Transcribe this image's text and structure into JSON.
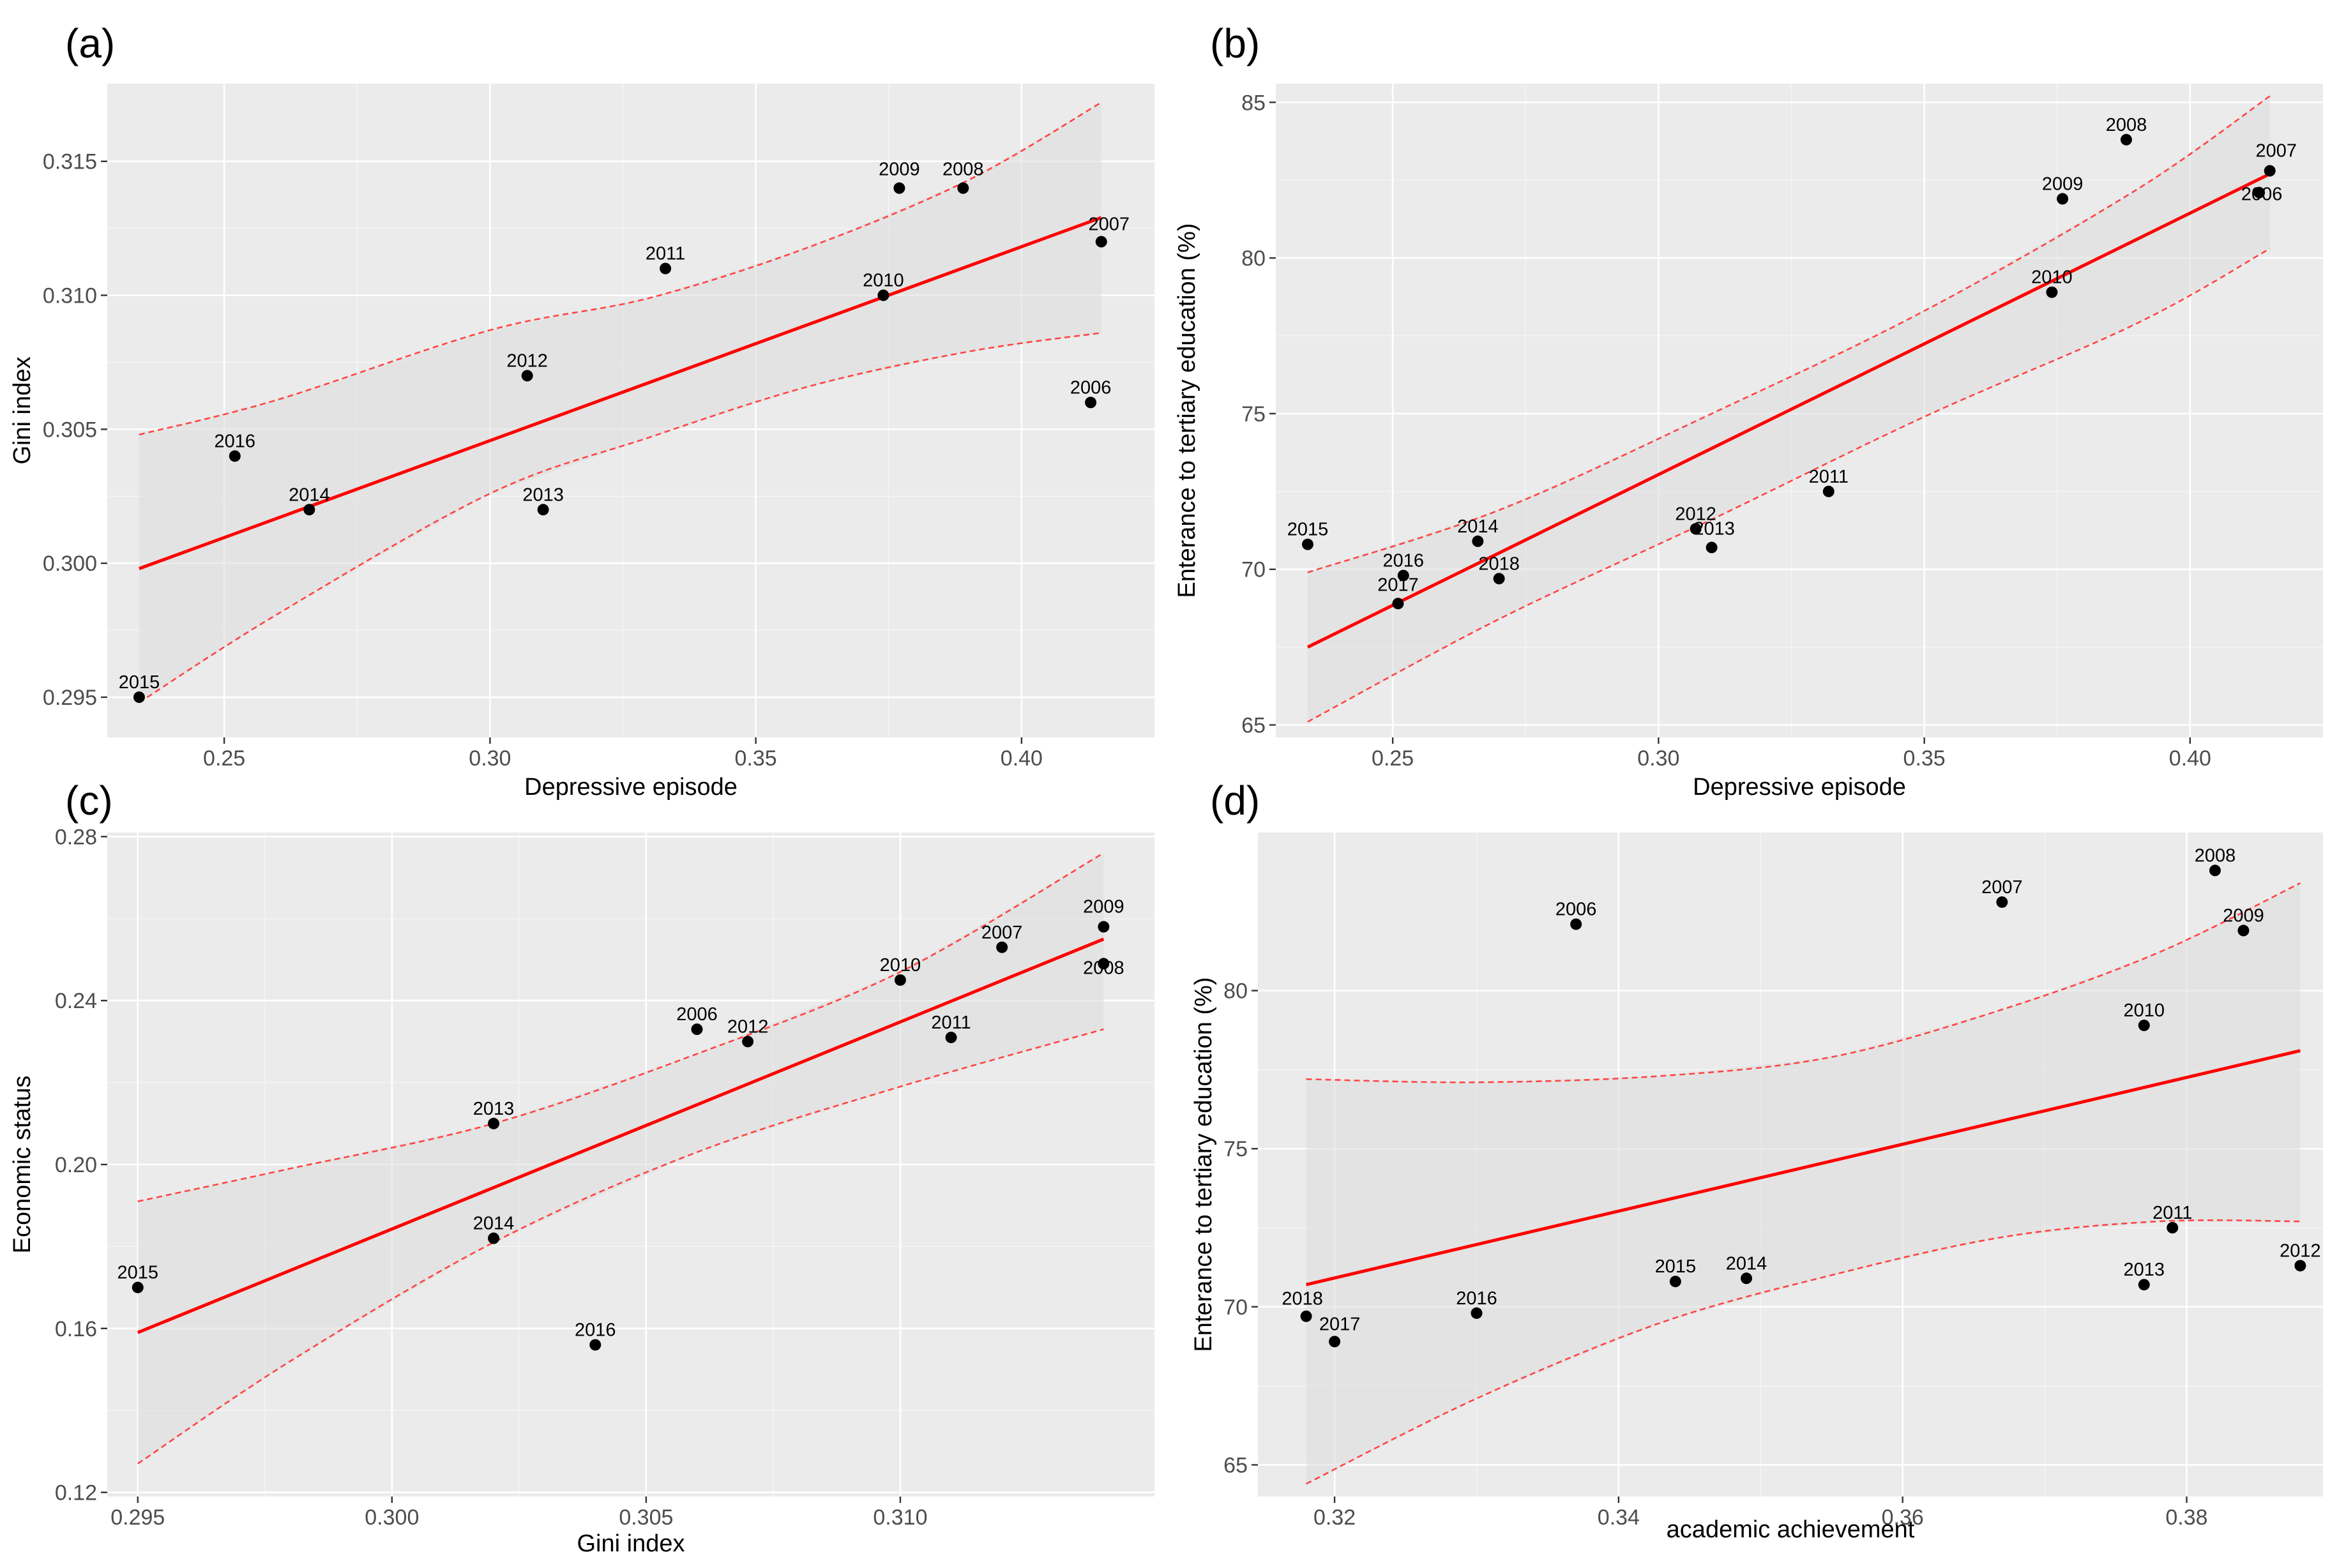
{
  "chart_data": [
    {
      "type": "scatter",
      "panel_label": "(a)",
      "xlabel": "Depressive episode",
      "ylabel": "Gini index",
      "xlim": [
        0.228,
        0.425
      ],
      "ylim": [
        0.2935,
        0.3179
      ],
      "x_ticks": [
        0.25,
        0.3,
        0.35,
        0.4
      ],
      "x_tick_labels": [
        "0.25",
        "0.30",
        "0.35",
        "0.40"
      ],
      "y_ticks": [
        0.295,
        0.3,
        0.305,
        0.31,
        0.315
      ],
      "y_tick_labels": [
        "0.295",
        "0.300",
        "0.305",
        "0.310",
        "0.315"
      ],
      "grid": true,
      "points": [
        {
          "label": "2006",
          "x": 0.413,
          "y": 0.306
        },
        {
          "label": "2007",
          "x": 0.415,
          "y": 0.312
        },
        {
          "label": "2008",
          "x": 0.389,
          "y": 0.314
        },
        {
          "label": "2009",
          "x": 0.377,
          "y": 0.314
        },
        {
          "label": "2010",
          "x": 0.374,
          "y": 0.31
        },
        {
          "label": "2011",
          "x": 0.333,
          "y": 0.311
        },
        {
          "label": "2012",
          "x": 0.307,
          "y": 0.307
        },
        {
          "label": "2013",
          "x": 0.31,
          "y": 0.302
        },
        {
          "label": "2014",
          "x": 0.266,
          "y": 0.302
        },
        {
          "label": "2015",
          "x": 0.234,
          "y": 0.295
        },
        {
          "label": "2016",
          "x": 0.252,
          "y": 0.304
        }
      ],
      "fit": {
        "x": [
          0.234,
          0.415
        ],
        "y": [
          0.2998,
          0.3129
        ]
      },
      "band_x": [
        0.234,
        0.26,
        0.3,
        0.33,
        0.36,
        0.39,
        0.415
      ],
      "band_upper": [
        0.3048,
        0.3061,
        0.3087,
        0.3099,
        0.3118,
        0.3143,
        0.3172
      ],
      "band_lower": [
        0.2948,
        0.2981,
        0.3026,
        0.3047,
        0.3066,
        0.3079,
        0.3086
      ]
    },
    {
      "type": "scatter",
      "panel_label": "(b)",
      "xlabel": "Depressive episode",
      "ylabel": "Enterance to tertiary education (%)",
      "xlim": [
        0.228,
        0.425
      ],
      "ylim": [
        64.6,
        85.6
      ],
      "x_ticks": [
        0.25,
        0.3,
        0.35,
        0.4
      ],
      "x_tick_labels": [
        "0.25",
        "0.30",
        "0.35",
        "0.40"
      ],
      "y_ticks": [
        65,
        70,
        75,
        80,
        85
      ],
      "y_tick_labels": [
        "65",
        "70",
        "75",
        "80",
        "85"
      ],
      "grid": true,
      "points": [
        {
          "label": "2006",
          "x": 0.413,
          "y": 82.1
        },
        {
          "label": "2007",
          "x": 0.415,
          "y": 82.8
        },
        {
          "label": "2008",
          "x": 0.388,
          "y": 83.8
        },
        {
          "label": "2009",
          "x": 0.376,
          "y": 81.9
        },
        {
          "label": "2010",
          "x": 0.374,
          "y": 78.9
        },
        {
          "label": "2011",
          "x": 0.332,
          "y": 72.5
        },
        {
          "label": "2012",
          "x": 0.307,
          "y": 71.3
        },
        {
          "label": "2013",
          "x": 0.31,
          "y": 70.7
        },
        {
          "label": "2014",
          "x": 0.266,
          "y": 70.9
        },
        {
          "label": "2015",
          "x": 0.234,
          "y": 70.8
        },
        {
          "label": "2016",
          "x": 0.252,
          "y": 69.8
        },
        {
          "label": "2017",
          "x": 0.251,
          "y": 68.9
        },
        {
          "label": "2018",
          "x": 0.27,
          "y": 69.7
        }
      ],
      "fit": {
        "x": [
          0.234,
          0.415
        ],
        "y": [
          67.5,
          82.7
        ]
      },
      "band_x": [
        0.234,
        0.27,
        0.31,
        0.35,
        0.39,
        0.415
      ],
      "band_upper": [
        69.9,
        71.9,
        75.0,
        78.3,
        82.2,
        85.2
      ],
      "band_lower": [
        65.1,
        68.4,
        71.6,
        74.9,
        77.9,
        80.3
      ]
    },
    {
      "type": "scatter",
      "panel_label": "(c)",
      "xlabel": "Gini index",
      "ylabel": "Economic status",
      "xlim": [
        0.2944,
        0.315
      ],
      "ylim": [
        0.119,
        0.281
      ],
      "x_ticks": [
        0.295,
        0.3,
        0.305,
        0.31
      ],
      "x_tick_labels": [
        "0.295",
        "0.300",
        "0.305",
        "0.310"
      ],
      "y_ticks": [
        0.12,
        0.16,
        0.2,
        0.24,
        0.28
      ],
      "y_tick_labels": [
        "0.12",
        "0.16",
        "0.20",
        "0.24",
        "0.28"
      ],
      "grid": true,
      "points": [
        {
          "label": "2006",
          "x": 0.306,
          "y": 0.233
        },
        {
          "label": "2007",
          "x": 0.312,
          "y": 0.253
        },
        {
          "label": "2008",
          "x": 0.314,
          "y": 0.249
        },
        {
          "label": "2009",
          "x": 0.314,
          "y": 0.258
        },
        {
          "label": "2010",
          "x": 0.31,
          "y": 0.245
        },
        {
          "label": "2011",
          "x": 0.311,
          "y": 0.231
        },
        {
          "label": "2012",
          "x": 0.307,
          "y": 0.23
        },
        {
          "label": "2013",
          "x": 0.302,
          "y": 0.21
        },
        {
          "label": "2014",
          "x": 0.302,
          "y": 0.182
        },
        {
          "label": "2015",
          "x": 0.295,
          "y": 0.17
        },
        {
          "label": "2016",
          "x": 0.304,
          "y": 0.156
        }
      ],
      "fit": {
        "x": [
          0.295,
          0.314
        ],
        "y": [
          0.159,
          0.255
        ]
      },
      "band_x": [
        0.295,
        0.298,
        0.302,
        0.306,
        0.31,
        0.314
      ],
      "band_upper": [
        0.191,
        0.199,
        0.21,
        0.227,
        0.247,
        0.276
      ],
      "band_lower": [
        0.127,
        0.152,
        0.181,
        0.203,
        0.219,
        0.233
      ]
    },
    {
      "type": "scatter",
      "panel_label": "(d)",
      "xlabel": "academic achievement",
      "ylabel": "Enterance to tertiary education (%)",
      "xlim": [
        0.3146,
        0.3896
      ],
      "ylim": [
        64.0,
        85.0
      ],
      "x_ticks": [
        0.32,
        0.34,
        0.36,
        0.38
      ],
      "x_tick_labels": [
        "0.32",
        "0.34",
        "0.36",
        "0.38"
      ],
      "y_ticks": [
        65,
        70,
        75,
        80
      ],
      "y_tick_labels": [
        "65",
        "70",
        "75",
        "80"
      ],
      "grid": true,
      "points": [
        {
          "label": "2006",
          "x": 0.337,
          "y": 82.1
        },
        {
          "label": "2007",
          "x": 0.367,
          "y": 82.8
        },
        {
          "label": "2008",
          "x": 0.382,
          "y": 83.8
        },
        {
          "label": "2009",
          "x": 0.384,
          "y": 81.9
        },
        {
          "label": "2010",
          "x": 0.377,
          "y": 78.9
        },
        {
          "label": "2011",
          "x": 0.379,
          "y": 72.5
        },
        {
          "label": "2012",
          "x": 0.388,
          "y": 71.3
        },
        {
          "label": "2013",
          "x": 0.377,
          "y": 70.7
        },
        {
          "label": "2014",
          "x": 0.349,
          "y": 70.9
        },
        {
          "label": "2015",
          "x": 0.344,
          "y": 70.8
        },
        {
          "label": "2016",
          "x": 0.33,
          "y": 69.8
        },
        {
          "label": "2017",
          "x": 0.32,
          "y": 68.9
        },
        {
          "label": "2018",
          "x": 0.318,
          "y": 69.7
        }
      ],
      "fit": {
        "x": [
          0.318,
          0.388
        ],
        "y": [
          70.7,
          78.1
        ]
      },
      "band_x": [
        0.318,
        0.33,
        0.343,
        0.355,
        0.367,
        0.378,
        0.388
      ],
      "band_upper": [
        77.2,
        77.1,
        77.3,
        77.9,
        79.4,
        81.2,
        83.4
      ],
      "band_lower": [
        64.4,
        67.1,
        69.5,
        71.0,
        72.2,
        72.7,
        72.7
      ]
    }
  ]
}
